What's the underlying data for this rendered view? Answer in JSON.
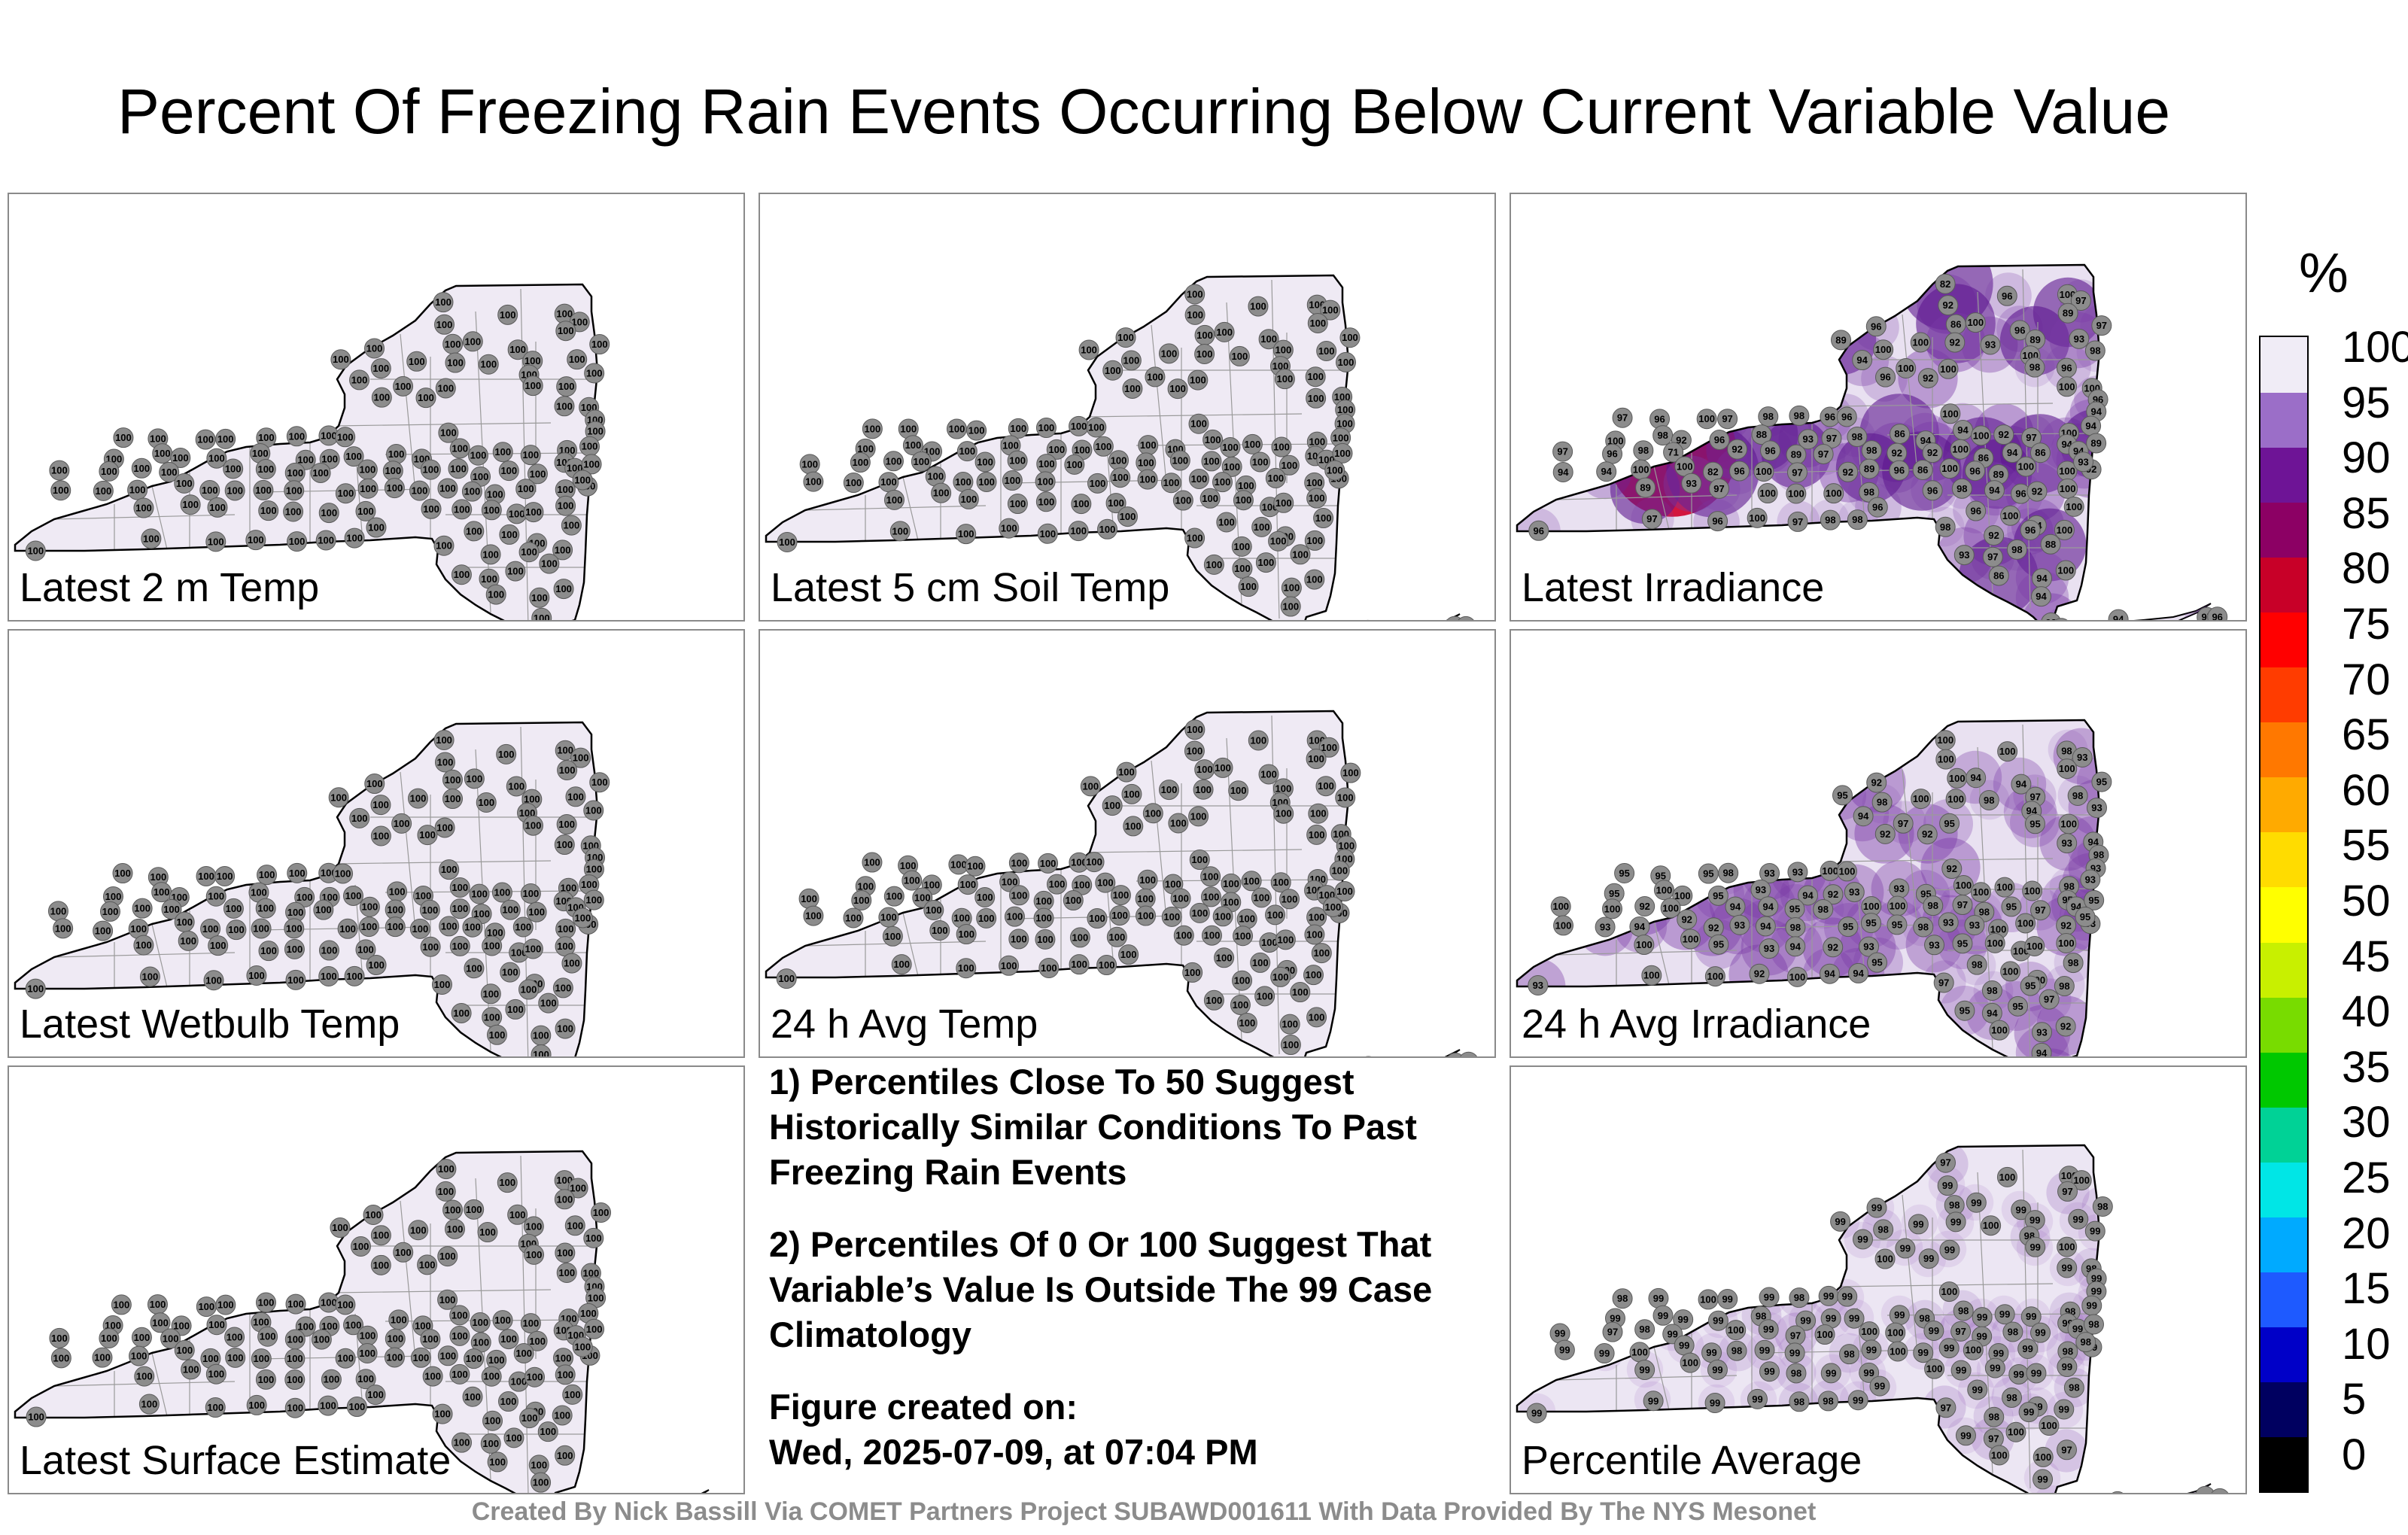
{
  "title": "Percent Of Freezing Rain Events Occurring Below Current Variable Value",
  "panels": [
    {
      "label": "Latest 2 m Temp",
      "shade": "#efeaf4",
      "values": [
        100
      ]
    },
    {
      "label": "Latest 5 cm Soil Temp",
      "shade": "#efeaf4",
      "values": [
        100
      ]
    },
    {
      "label": "Latest Irradiance",
      "shade": "#e9e1f1",
      "values": [
        82,
        96,
        100,
        97,
        92,
        89,
        96,
        86,
        100,
        96,
        89,
        100,
        100,
        92,
        93,
        89,
        93,
        97,
        100,
        100,
        100,
        98,
        96,
        98,
        94,
        96,
        92,
        100,
        100,
        96,
        97,
        96,
        100,
        97,
        98,
        98,
        96,
        96,
        100,
        94,
        100,
        98,
        92,
        96,
        88,
        93,
        97,
        98,
        86,
        94,
        94,
        100,
        92,
        97,
        100,
        94,
        97,
        96,
        98,
        71,
        92,
        96,
        89,
        97,
        98,
        92,
        92,
        100,
        86,
        94,
        86,
        94,
        94,
        89,
        94,
        94,
        100,
        100
      ]
    },
    {
      "label": "Latest Wetbulb Temp",
      "shade": "#efeaf4",
      "values": [
        100
      ]
    },
    {
      "label": "24 h Avg Temp",
      "shade": "#efeaf4",
      "values": [
        100
      ]
    },
    {
      "label": "24 h Avg Irradiance",
      "shade": "#e9e1f1",
      "values": [
        100,
        100,
        98,
        93,
        100,
        100,
        92,
        100,
        94,
        94,
        95,
        98,
        100,
        100,
        98,
        97,
        98,
        95,
        97,
        95,
        94,
        95,
        100,
        93,
        94,
        92,
        92,
        93,
        94,
        98,
        95,
        95,
        95,
        98,
        93,
        93,
        100,
        100,
        92,
        93,
        95,
        100,
        100,
        95,
        93,
        94,
        92,
        93,
        93,
        95,
        100,
        100
      ]
    },
    {
      "label": "Latest Surface Estimate",
      "shade": "#efeaf4",
      "values": [
        100
      ]
    },
    {
      "label": "Percentile Average",
      "shade": "#ece6f3",
      "values": [
        97,
        100,
        100,
        100,
        99,
        97,
        99,
        98,
        99,
        99,
        99,
        98,
        99,
        99,
        100,
        99,
        99,
        98,
        99,
        99,
        98,
        99,
        100,
        99,
        99,
        100,
        99,
        99,
        98,
        99,
        98,
        99,
        100,
        99,
        99,
        98,
        99,
        99,
        100,
        99,
        99,
        99,
        99,
        99,
        98,
        99,
        99,
        99,
        99,
        98,
        98,
        99,
        99,
        99,
        98,
        99,
        99,
        97,
        98,
        99,
        100,
        99
      ]
    }
  ],
  "notes": [
    "1) Percentiles Close To 50 Suggest Historically Similar Conditions To Past Freezing Rain Events",
    "2) Percentiles Of 0 Or 100 Suggest That Variable’s Value Is Outside The 99 Case Climatology"
  ],
  "created_label": "Figure created on:",
  "created_value": "Wed, 2025-07-09, at 07:04 PM",
  "footer": "Created By Nick Bassill Via COMET Partners Project SUBAWD001611 With Data Provided By The NYS Mesonet",
  "colorbar": {
    "unit": "%",
    "ticks": [
      "100",
      "95",
      "90",
      "85",
      "80",
      "75",
      "70",
      "65",
      "60",
      "55",
      "50",
      "45",
      "40",
      "35",
      "30",
      "25",
      "20",
      "15",
      "10",
      "5",
      "0"
    ],
    "colors": [
      "#000000",
      "#000060",
      "#0000c8",
      "#1e5aff",
      "#00aaff",
      "#00e6e6",
      "#00d296",
      "#00c800",
      "#78dc00",
      "#c8f000",
      "#ffff00",
      "#ffdc00",
      "#ffaa00",
      "#ff7800",
      "#ff3c00",
      "#ff0000",
      "#c80028",
      "#8c0064",
      "#6e1496",
      "#9b6ec8",
      "#f0ecf6"
    ]
  }
}
